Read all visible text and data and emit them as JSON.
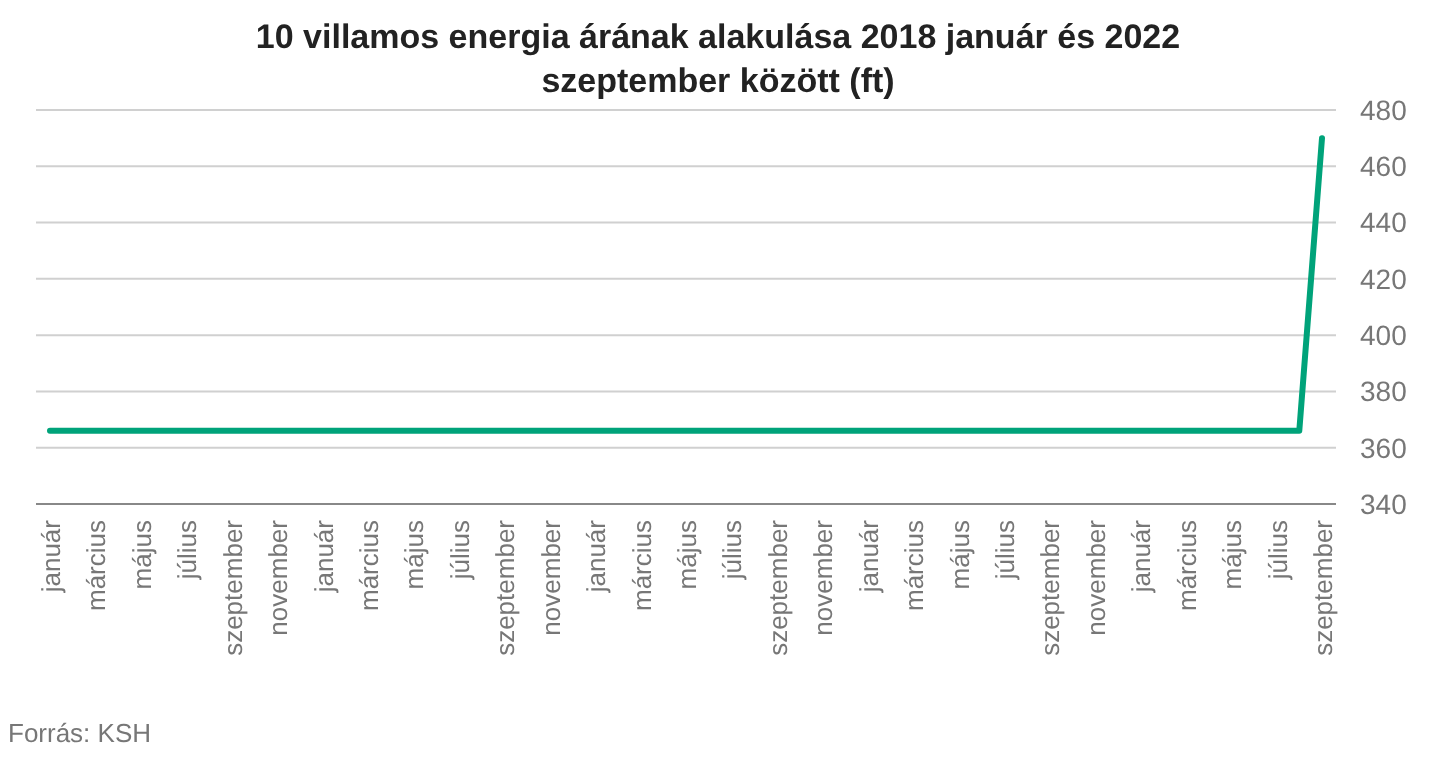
{
  "chart_data": {
    "type": "line",
    "title": "10 villamos energia árának alakulása 2018 január és 2022 szeptember között (ft)",
    "categories": [
      "január",
      null,
      "március",
      null,
      "május",
      null,
      "július",
      null,
      "szeptember",
      null,
      "november",
      null,
      "január",
      null,
      "március",
      null,
      "május",
      null,
      "július",
      null,
      "szeptember",
      null,
      "november",
      null,
      "január",
      null,
      "március",
      null,
      "május",
      null,
      "július",
      null,
      "szeptember",
      null,
      "november",
      null,
      "január",
      null,
      "március",
      null,
      "május",
      null,
      "július",
      null,
      "szeptember",
      null,
      "november",
      null,
      "január",
      null,
      "március",
      null,
      "május",
      null,
      "július",
      null,
      "szeptember"
    ],
    "series": [
      {
        "color": "#00a37a",
        "values": [
          366,
          366,
          366,
          366,
          366,
          366,
          366,
          366,
          366,
          366,
          366,
          366,
          366,
          366,
          366,
          366,
          366,
          366,
          366,
          366,
          366,
          366,
          366,
          366,
          366,
          366,
          366,
          366,
          366,
          366,
          366,
          366,
          366,
          366,
          366,
          366,
          366,
          366,
          366,
          366,
          366,
          366,
          366,
          366,
          366,
          366,
          366,
          366,
          366,
          366,
          366,
          366,
          366,
          366,
          366,
          366,
          470
        ]
      }
    ],
    "ylim": [
      340,
      480
    ],
    "yticks": [
      340,
      360,
      380,
      400,
      420,
      440,
      460,
      480
    ],
    "grid": "y",
    "annotations": [
      "Forrás: KSH"
    ]
  }
}
